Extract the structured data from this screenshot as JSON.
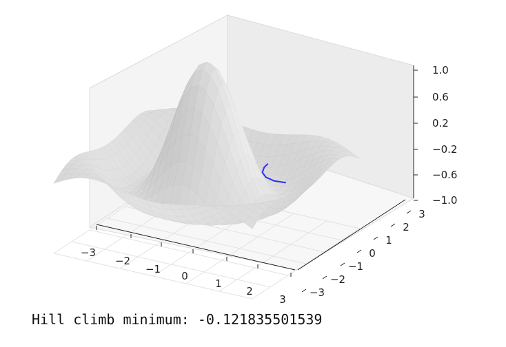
{
  "chart_data": {
    "type": "surface3d",
    "title": "",
    "xlabel": "",
    "ylabel": "",
    "zlabel": "",
    "x_ticks": [
      "−3",
      "−2",
      "−1",
      "0",
      "1",
      "2",
      "3"
    ],
    "y_ticks": [
      "−3",
      "−2",
      "−1",
      "0",
      "1",
      "2",
      "3"
    ],
    "z_ticks": [
      "1.0",
      "0.6",
      "0.2",
      "−0.2",
      "−0.6",
      "−1.0"
    ],
    "xlim": [
      -3,
      3
    ],
    "ylim": [
      -3,
      3
    ],
    "zlim": [
      -1,
      1
    ],
    "grid": true,
    "surface_color": "#d9d9d9",
    "path_color": "#2b2bff",
    "series": [
      {
        "x": [
          1.55,
          1.4,
          1.3,
          1.35,
          1.55,
          1.85
        ],
        "y": [
          0.55,
          0.62,
          0.7,
          0.8,
          0.9,
          1.0
        ],
        "z": [
          0.2,
          0.12,
          0.02,
          -0.06,
          -0.11,
          -0.12
        ]
      }
    ]
  },
  "output_text": "Hill climb minimum: -0.121835501539"
}
